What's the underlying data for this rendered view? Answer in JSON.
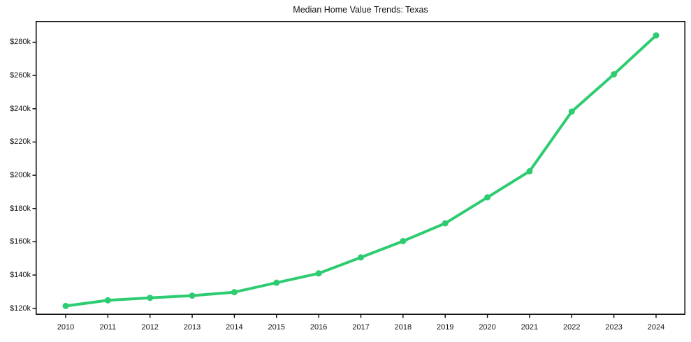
{
  "chart_data": {
    "type": "line",
    "title": "Median Home Value Trends: Texas",
    "x": [
      2010,
      2011,
      2012,
      2013,
      2014,
      2015,
      2016,
      2017,
      2018,
      2019,
      2020,
      2021,
      2022,
      2023,
      2024
    ],
    "values": [
      121.4,
      124.8,
      126.3,
      127.6,
      129.7,
      135.4,
      141.0,
      150.6,
      160.4,
      171.1,
      186.7,
      202.4,
      238.3,
      260.7,
      284.1
    ],
    "values_unit": "USD thousands",
    "xlabel": "",
    "ylabel": "",
    "yticks": [
      120,
      140,
      160,
      180,
      200,
      220,
      240,
      260,
      280
    ],
    "ytick_labels": [
      "$120k",
      "$140k",
      "$160k",
      "$180k",
      "$200k",
      "$220k",
      "$240k",
      "$260k",
      "$280k"
    ],
    "xtick_labels": [
      "2010",
      "2011",
      "2012",
      "2013",
      "2014",
      "2015",
      "2016",
      "2017",
      "2018",
      "2019",
      "2020",
      "2021",
      "2022",
      "2023",
      "2024"
    ],
    "ylim": [
      116.1,
      292.8
    ],
    "grid": false,
    "legend": false,
    "line_color": "#2ecc71",
    "marker": "circle",
    "axis_color": "#000000",
    "background_color": "#ffffff"
  }
}
